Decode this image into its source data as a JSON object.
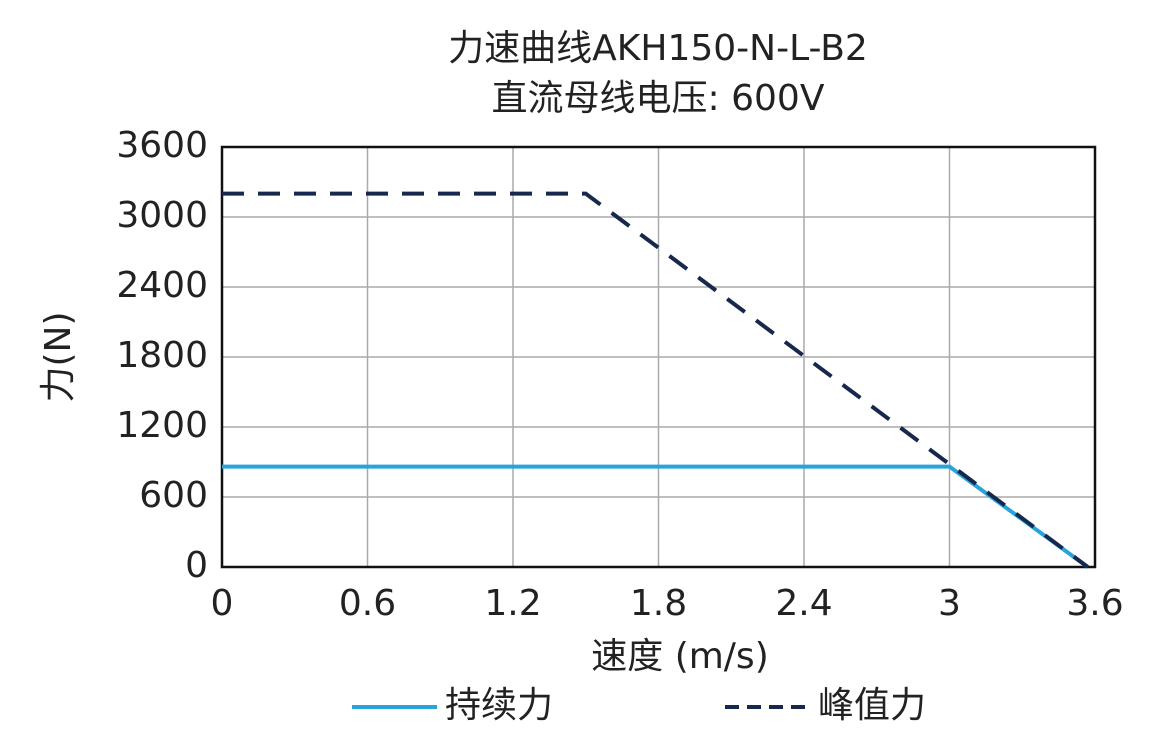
{
  "chart_data": {
    "type": "line",
    "title": "力速曲线AKH150-N-L-B2",
    "subtitle": "直流母线电压: 600V",
    "x_label": "速度 (m/s)",
    "y_label": "力(N)",
    "series": [
      {
        "name": "持续力",
        "color": "#29a3dc",
        "dash": false,
        "x": [
          0,
          3.0,
          3.57
        ],
        "values": [
          860,
          860,
          0
        ]
      },
      {
        "name": "峰值力",
        "color": "#16284d",
        "dash": true,
        "x": [
          0,
          1.5,
          3.57
        ],
        "values": [
          3200,
          3200,
          0
        ]
      }
    ],
    "xlim": [
      0,
      3.6
    ],
    "xticks": [
      0,
      0.6,
      1.2,
      1.8,
      2.4,
      3,
      3.6
    ],
    "ylim": [
      0,
      3600
    ],
    "yticks": [
      0,
      600,
      1200,
      1800,
      2400,
      3000,
      3600
    ],
    "grid": true,
    "legend": "bottom"
  }
}
